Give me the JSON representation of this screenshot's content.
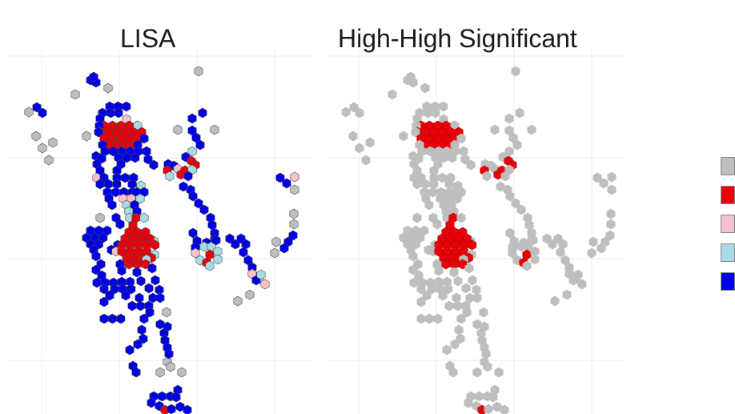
{
  "panels": {
    "left": {
      "title": "LISA"
    },
    "right": {
      "title": "High-High Significant"
    }
  },
  "colors": {
    "not_significant": "#bebebe",
    "high_high": "#e8000b",
    "low_high": "#f7c0cb",
    "high_low": "#aadae6",
    "low_low": "#0000e6",
    "hex_stroke": "#4a4a4a",
    "grid": "#ebebeb"
  },
  "legend": {
    "entries": [
      {
        "color": "#bebebe"
      },
      {
        "color": "#e8000b"
      },
      {
        "color": "#f7c0cb"
      },
      {
        "color": "#aadae6"
      },
      {
        "color": "#0000e6"
      }
    ]
  }
}
